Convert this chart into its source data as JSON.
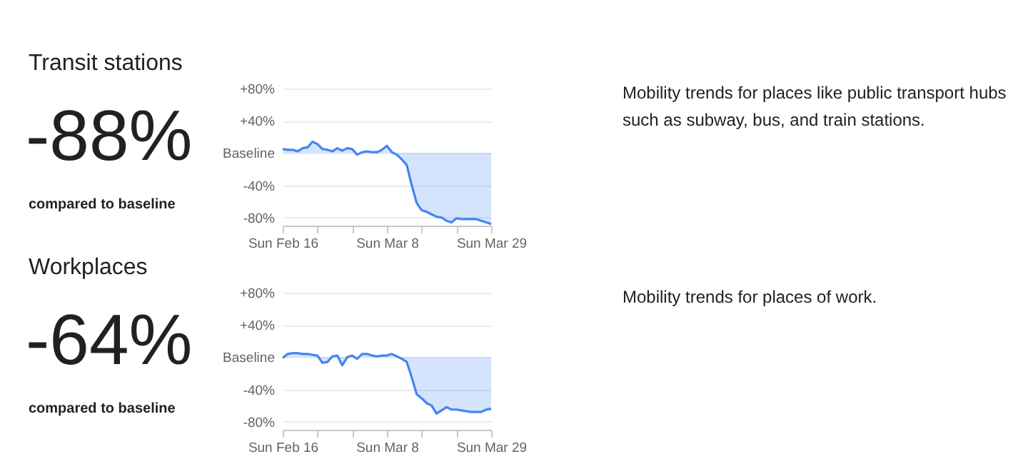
{
  "chart_data": [
    {
      "type": "other",
      "title": "Transit stations",
      "annotations": [
        "-88%",
        "compared to baseline"
      ]
    },
    {
      "type": "line",
      "x": [
        "--02-16",
        "--02-17",
        "--02-18",
        "--02-19",
        "--02-20",
        "--02-21",
        "--02-22",
        "--02-23",
        "--02-24",
        "--02-25",
        "--02-26",
        "--02-27",
        "--02-28",
        "--02-29",
        "--03-01",
        "--03-02",
        "--03-03",
        "--03-04",
        "--03-05",
        "--03-06",
        "--03-07",
        "--03-08",
        "--03-09",
        "--03-10",
        "--03-11",
        "--03-12",
        "--03-13",
        "--03-14",
        "--03-15",
        "--03-16",
        "--03-17",
        "--03-18",
        "--03-19",
        "--03-20",
        "--03-21",
        "--03-22",
        "--03-23",
        "--03-24",
        "--03-25",
        "--03-26",
        "--03-27",
        "--03-28",
        "--03-29"
      ],
      "series": [
        {
          "type": "area",
          "color": "#4285f4",
          "values": [
            5,
            4,
            4,
            2,
            6,
            7,
            14,
            11,
            5,
            4,
            2,
            6,
            3,
            6,
            5,
            -2,
            1,
            2,
            1,
            1,
            4,
            9,
            1,
            -2,
            -8,
            -15,
            -40,
            -62,
            -71,
            -73,
            -76,
            -79,
            -80,
            -84,
            -86,
            -81,
            -82,
            -82,
            -82,
            -82,
            -84,
            -86,
            -88
          ]
        }
      ],
      "xlim": [
        "--02-16",
        "--03-29"
      ],
      "xticks": [
        {
          "value": "--02-16",
          "label": "Sun Feb 16"
        },
        {
          "value": "--02-23",
          "label": null
        },
        {
          "value": "--03-01",
          "label": null
        },
        {
          "value": "--03-08",
          "label": "Sun Mar 8"
        },
        {
          "value": "--03-15",
          "label": null
        },
        {
          "value": "--03-22",
          "label": null
        },
        {
          "value": "--03-29",
          "label": "Sun Mar 29"
        }
      ],
      "ylim": [
        -90,
        80
      ],
      "yticks": [
        {
          "value": -80,
          "label": "-80%"
        },
        {
          "value": -40,
          "label": "-40%"
        },
        {
          "value": 0,
          "label": "Baseline"
        },
        {
          "value": 40,
          "label": "+40%"
        },
        {
          "value": 80,
          "label": "+80%"
        }
      ],
      "grid": "y"
    },
    {
      "type": "other",
      "annotations": [
        "Mobility trends for places like public transport hubs such as subway, bus, and train stations."
      ]
    },
    {
      "type": "other",
      "title": "Workplaces",
      "annotations": [
        "-64%",
        "compared to baseline"
      ]
    },
    {
      "type": "line",
      "x": [
        "--02-16",
        "--02-17",
        "--02-18",
        "--02-19",
        "--02-20",
        "--02-21",
        "--02-22",
        "--02-23",
        "--02-24",
        "--02-25",
        "--02-26",
        "--02-27",
        "--02-28",
        "--02-29",
        "--03-01",
        "--03-02",
        "--03-03",
        "--03-04",
        "--03-05",
        "--03-06",
        "--03-07",
        "--03-08",
        "--03-09",
        "--03-10",
        "--03-11",
        "--03-12",
        "--03-13",
        "--03-14",
        "--03-15",
        "--03-16",
        "--03-17",
        "--03-18",
        "--03-19",
        "--03-20",
        "--03-21",
        "--03-22",
        "--03-23",
        "--03-24",
        "--03-25",
        "--03-26",
        "--03-27",
        "--03-28",
        "--03-29"
      ],
      "series": [
        {
          "type": "area",
          "color": "#4285f4",
          "values": [
            -1,
            4,
            5,
            5,
            4,
            4,
            3,
            2,
            -7,
            -6,
            1,
            2,
            -10,
            0,
            2,
            -2,
            4,
            4,
            2,
            1,
            2,
            2,
            4,
            1,
            -2,
            -6,
            -25,
            -46,
            -51,
            -57,
            -60,
            -70,
            -66,
            -62,
            -65,
            -65,
            -66,
            -67,
            -68,
            -68,
            -68,
            -65,
            -64
          ]
        }
      ],
      "xlim": [
        "--02-16",
        "--03-29"
      ],
      "xticks": [
        {
          "value": "--02-16",
          "label": "Sun Feb 16"
        },
        {
          "value": "--02-23",
          "label": null
        },
        {
          "value": "--03-01",
          "label": null
        },
        {
          "value": "--03-08",
          "label": "Sun Mar 8"
        },
        {
          "value": "--03-15",
          "label": null
        },
        {
          "value": "--03-22",
          "label": null
        },
        {
          "value": "--03-29",
          "label": "Sun Mar 29"
        }
      ],
      "ylim": [
        -90,
        80
      ],
      "yticks": [
        {
          "value": -80,
          "label": "-80%"
        },
        {
          "value": -40,
          "label": "-40%"
        },
        {
          "value": 0,
          "label": "Baseline"
        },
        {
          "value": 40,
          "label": "+40%"
        },
        {
          "value": 80,
          "label": "+80%"
        }
      ],
      "grid": "y"
    },
    {
      "type": "other",
      "annotations": [
        "Mobility trends for places of work."
      ]
    }
  ]
}
